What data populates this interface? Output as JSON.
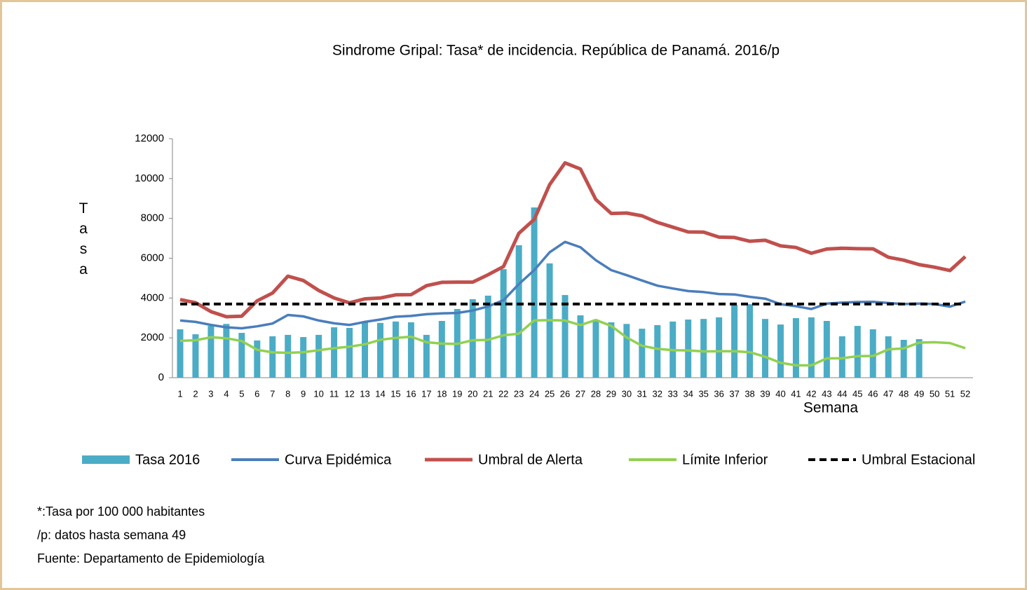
{
  "chart_data": {
    "type": "bar-line",
    "title": "Sindrome Gripal: Tasa* de incidencia. República de Panamá. 2016/p",
    "y_label": "Tasa",
    "x_label": "Semana",
    "categories": [
      "1",
      "2",
      "3",
      "4",
      "5",
      "6",
      "7",
      "8",
      "9",
      "10",
      "11",
      "12",
      "13",
      "14",
      "15",
      "16",
      "17",
      "18",
      "19",
      "20",
      "21",
      "22",
      "23",
      "24",
      "25",
      "26",
      "27",
      "28",
      "29",
      "30",
      "31",
      "32",
      "33",
      "34",
      "35",
      "36",
      "37",
      "38",
      "39",
      "40",
      "41",
      "42",
      "43",
      "44",
      "45",
      "46",
      "47",
      "48",
      "49",
      "50",
      "51",
      "52"
    ],
    "ylim": [
      0,
      12000
    ],
    "yticks": [
      0,
      2000,
      4000,
      6000,
      8000,
      10000,
      12000
    ],
    "series": [
      {
        "name": "Tasa 2016",
        "type": "bar",
        "color": "#4bacc6",
        "values": [
          2430,
          2180,
          2600,
          2700,
          2250,
          1870,
          2080,
          2150,
          2040,
          2150,
          2530,
          2500,
          2780,
          2750,
          2820,
          2780,
          2150,
          2850,
          3450,
          3940,
          4120,
          5450,
          6650,
          8550,
          5740,
          4150,
          3130,
          2920,
          2780,
          2700,
          2460,
          2640,
          2820,
          2920,
          2950,
          3030,
          3660,
          3690,
          2950,
          2670,
          2990,
          3030,
          2850,
          2080,
          2600,
          2430,
          2080,
          1900,
          1935,
          null,
          null,
          null
        ]
      },
      {
        "name": "Curva Epidémica",
        "type": "line",
        "color": "#4a7ebb",
        "values": [
          2870,
          2800,
          2650,
          2530,
          2480,
          2580,
          2720,
          3150,
          3080,
          2870,
          2730,
          2650,
          2800,
          2920,
          3060,
          3100,
          3190,
          3230,
          3250,
          3370,
          3580,
          3890,
          4700,
          5400,
          6300,
          6820,
          6550,
          5900,
          5400,
          5150,
          4880,
          4620,
          4480,
          4350,
          4300,
          4200,
          4180,
          4060,
          3970,
          3690,
          3590,
          3450,
          3720,
          3770,
          3800,
          3810,
          3750,
          3700,
          3720,
          3700,
          3570,
          3820
        ]
      },
      {
        "name": "Umbral de Alerta",
        "type": "line",
        "color": "#c0504d",
        "values": [
          3920,
          3770,
          3320,
          3060,
          3090,
          3860,
          4250,
          5100,
          4880,
          4380,
          4000,
          3760,
          3960,
          4000,
          4160,
          4170,
          4620,
          4790,
          4800,
          4800,
          5170,
          5580,
          7250,
          7950,
          9700,
          10790,
          10480,
          8950,
          8250,
          8270,
          8130,
          7800,
          7560,
          7320,
          7310,
          7060,
          7040,
          6850,
          6900,
          6620,
          6540,
          6250,
          6460,
          6500,
          6480,
          6470,
          6050,
          5900,
          5680,
          5550,
          5380,
          6080
        ]
      },
      {
        "name": "Límite Inferior",
        "type": "line",
        "color": "#92d050",
        "values": [
          1850,
          1880,
          2030,
          1980,
          1840,
          1400,
          1270,
          1250,
          1280,
          1380,
          1480,
          1560,
          1680,
          1900,
          2000,
          2060,
          1780,
          1710,
          1700,
          1880,
          1900,
          2130,
          2210,
          2880,
          2890,
          2870,
          2640,
          2900,
          2600,
          2020,
          1600,
          1450,
          1380,
          1370,
          1320,
          1330,
          1330,
          1280,
          1050,
          750,
          620,
          620,
          970,
          980,
          1080,
          1090,
          1420,
          1470,
          1760,
          1780,
          1740,
          1480
        ]
      },
      {
        "name": "Umbral Estacional",
        "type": "line",
        "dashed": true,
        "color": "#000000",
        "values": [
          3700,
          3700,
          3700,
          3700,
          3700,
          3700,
          3700,
          3700,
          3700,
          3700,
          3700,
          3700,
          3700,
          3700,
          3700,
          3700,
          3700,
          3700,
          3700,
          3700,
          3700,
          3700,
          3700,
          3700,
          3700,
          3700,
          3700,
          3700,
          3700,
          3700,
          3700,
          3700,
          3700,
          3700,
          3700,
          3700,
          3700,
          3700,
          3700,
          3700,
          3700,
          3700,
          3700,
          3700,
          3700,
          3700,
          3700,
          3700,
          3700,
          3700,
          3700,
          3700
        ]
      }
    ],
    "notes": [
      "*:Tasa por 100 000 habitantes",
      "/p: datos hasta semana  49",
      "Fuente: Departamento de Epidemiología"
    ]
  }
}
